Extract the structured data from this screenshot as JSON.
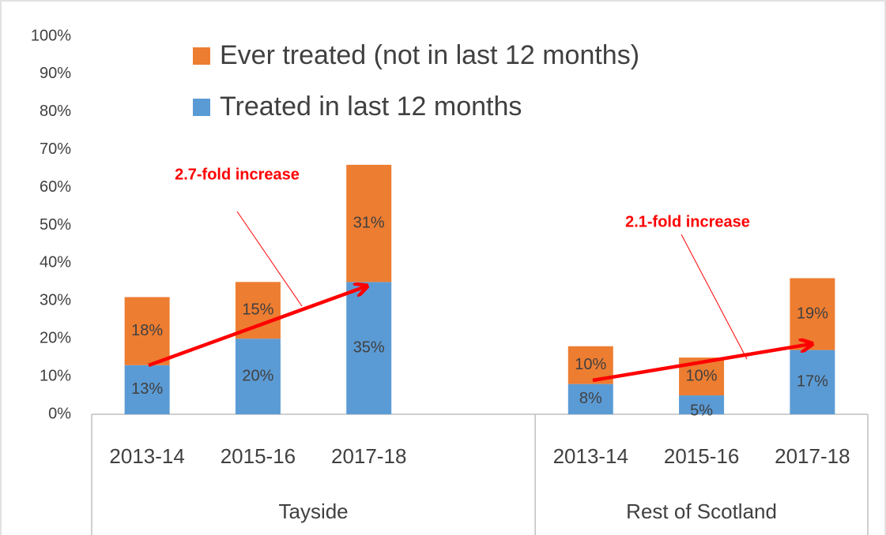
{
  "chart_data": {
    "type": "stacked-bar",
    "categories": [
      "2013-14",
      "2015-16",
      "2017-18",
      null,
      "2013-14",
      "2015-16",
      "2017-18"
    ],
    "groups": [
      "Tayside",
      "Rest of Scotland"
    ],
    "series": [
      {
        "name": "Treated in last 12 months",
        "color": "#5b9bd5",
        "values": [
          13,
          20,
          35,
          null,
          8,
          5,
          17
        ],
        "value_labels": [
          "13%",
          "20%",
          "35%",
          null,
          "8%",
          "5%",
          "17%"
        ]
      },
      {
        "name": "Ever treated (not in last 12 months)",
        "color": "#ed7d31",
        "values": [
          18,
          15,
          31,
          null,
          10,
          10,
          19
        ],
        "value_labels": [
          "18%",
          "15%",
          "31%",
          null,
          "10%",
          "10%",
          "19%"
        ]
      }
    ],
    "ylim": [
      0,
      100
    ],
    "yticks": [
      {
        "value": 0,
        "label": "0%"
      },
      {
        "value": 10,
        "label": "10%"
      },
      {
        "value": 20,
        "label": "20%"
      },
      {
        "value": 30,
        "label": "30%"
      },
      {
        "value": 40,
        "label": "40%"
      },
      {
        "value": 50,
        "label": "50%"
      },
      {
        "value": 60,
        "label": "60%"
      },
      {
        "value": 70,
        "label": "70%"
      },
      {
        "value": 80,
        "label": "80%"
      },
      {
        "value": 90,
        "label": "90%"
      },
      {
        "value": 100,
        "label": "100%"
      }
    ],
    "legend": "top",
    "annotations": [
      "2.7-fold increase",
      "2.1-fold increase"
    ]
  }
}
